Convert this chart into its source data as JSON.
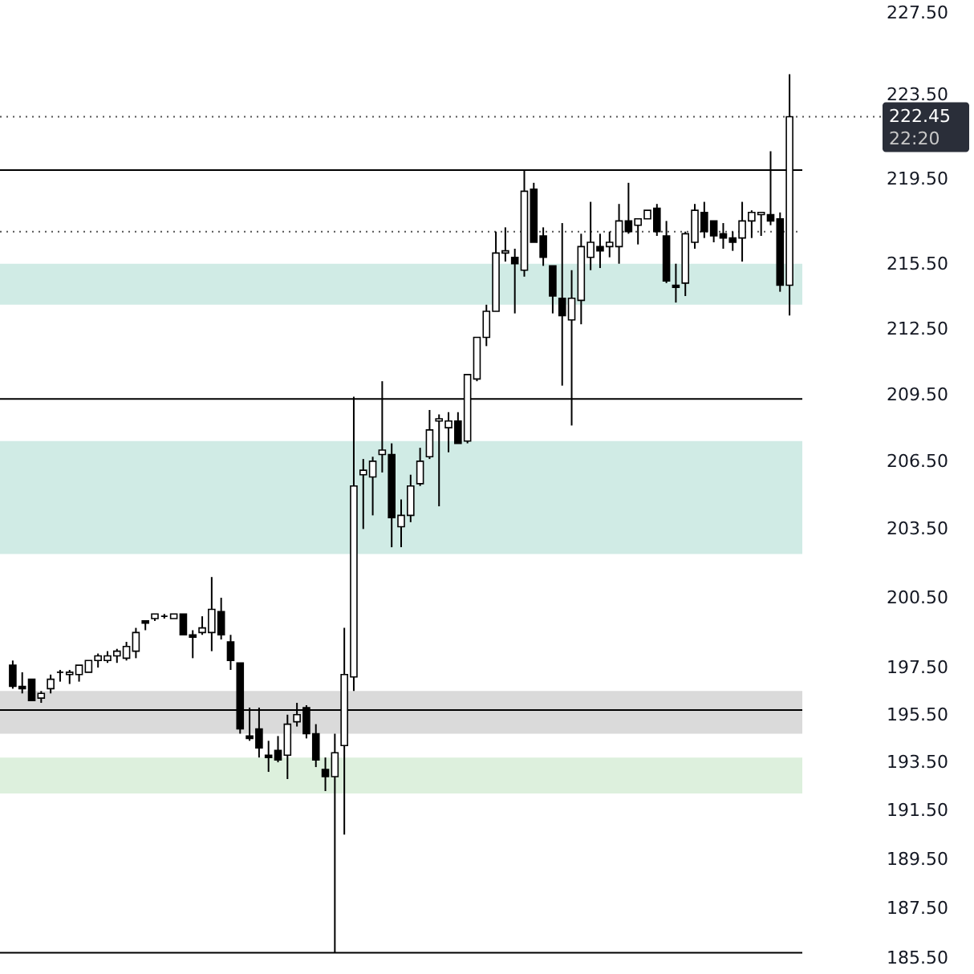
{
  "chart_data": {
    "type": "candlestick",
    "categories": [
      null,
      null,
      null,
      null,
      null,
      null,
      null,
      null,
      null,
      null,
      null,
      null,
      null,
      null,
      null,
      null,
      null,
      null,
      null,
      null,
      null,
      null,
      null,
      null,
      null,
      null,
      null,
      null,
      null,
      null,
      null,
      null,
      null,
      null,
      null,
      null,
      null,
      null,
      null,
      null,
      null,
      null,
      null,
      null,
      null,
      null,
      null,
      null,
      null,
      null,
      null,
      null,
      null,
      null,
      null,
      null,
      null,
      null,
      null,
      null,
      null,
      null,
      null,
      null,
      null,
      null,
      null,
      null,
      null,
      null,
      null,
      null,
      null,
      null,
      null,
      null,
      null,
      null,
      null,
      null,
      null,
      null,
      null
    ],
    "ohlc": [
      [
        197.6,
        197.8,
        196.6,
        196.7
      ],
      [
        196.7,
        197.3,
        196.4,
        196.6
      ],
      [
        197.0,
        197.0,
        196.1,
        196.1
      ],
      [
        196.2,
        196.5,
        196.0,
        196.4
      ],
      [
        196.6,
        197.2,
        196.4,
        197.0
      ],
      [
        197.3,
        197.4,
        196.9,
        197.3
      ],
      [
        197.2,
        197.4,
        196.8,
        197.3
      ],
      [
        197.2,
        197.6,
        196.9,
        197.6
      ],
      [
        197.3,
        197.8,
        197.3,
        197.8
      ],
      [
        197.8,
        198.1,
        197.5,
        198.0
      ],
      [
        197.8,
        198.2,
        197.7,
        198.0
      ],
      [
        198.0,
        198.3,
        197.7,
        198.2
      ],
      [
        197.9,
        198.6,
        197.8,
        198.4
      ],
      [
        198.2,
        199.2,
        197.9,
        199.0
      ],
      [
        199.5,
        199.5,
        199.1,
        199.4
      ],
      [
        199.6,
        199.8,
        199.5,
        199.8
      ],
      [
        199.7,
        199.8,
        199.6,
        199.7
      ],
      [
        199.6,
        199.8,
        199.6,
        199.8
      ],
      [
        199.8,
        199.8,
        198.9,
        198.9
      ],
      [
        198.9,
        199.1,
        197.9,
        198.8
      ],
      [
        199.0,
        199.7,
        198.9,
        199.2
      ],
      [
        199.0,
        201.4,
        198.2,
        200.0
      ],
      [
        199.9,
        200.5,
        198.7,
        198.9
      ],
      [
        198.6,
        198.9,
        197.4,
        197.8
      ],
      [
        197.7,
        197.7,
        194.7,
        194.9
      ],
      [
        194.6,
        195.8,
        194.4,
        194.5
      ],
      [
        194.9,
        195.8,
        193.7,
        194.1
      ],
      [
        193.8,
        194.4,
        193.1,
        193.7
      ],
      [
        194.0,
        194.6,
        193.5,
        193.6
      ],
      [
        193.8,
        195.5,
        192.8,
        195.1
      ],
      [
        195.2,
        196.0,
        195.0,
        195.5
      ],
      [
        195.8,
        195.9,
        194.5,
        194.7
      ],
      [
        194.7,
        195.1,
        193.3,
        193.6
      ],
      [
        193.2,
        193.7,
        192.3,
        192.9
      ],
      [
        192.9,
        194.7,
        185.7,
        193.9
      ],
      [
        194.2,
        199.2,
        190.5,
        197.2
      ],
      [
        197.1,
        209.4,
        196.5,
        205.4
      ],
      [
        205.9,
        206.6,
        203.5,
        206.1
      ],
      [
        205.8,
        206.7,
        204.1,
        206.5
      ],
      [
        206.8,
        210.1,
        206.0,
        207.0
      ],
      [
        206.8,
        207.3,
        202.7,
        204.0
      ],
      [
        203.6,
        204.8,
        202.7,
        204.1
      ],
      [
        204.1,
        205.9,
        203.8,
        205.4
      ],
      [
        205.5,
        207.1,
        205.4,
        206.5
      ],
      [
        206.7,
        208.8,
        206.6,
        207.9
      ],
      [
        208.3,
        208.6,
        204.5,
        208.4
      ],
      [
        208.0,
        208.7,
        206.9,
        208.3
      ],
      [
        208.3,
        208.7,
        207.3,
        207.3
      ],
      [
        207.4,
        210.4,
        207.3,
        210.4
      ],
      [
        210.2,
        212.1,
        210.1,
        212.1
      ],
      [
        212.1,
        213.6,
        211.7,
        213.3
      ],
      [
        213.3,
        217.0,
        213.3,
        216.0
      ],
      [
        216.0,
        217.2,
        215.6,
        216.1
      ],
      [
        215.8,
        216.2,
        213.2,
        215.5
      ],
      [
        215.2,
        219.9,
        214.9,
        218.9
      ],
      [
        219.0,
        219.3,
        216.5,
        216.5
      ],
      [
        216.8,
        217.2,
        215.4,
        215.8
      ],
      [
        215.4,
        215.4,
        213.2,
        214.0
      ],
      [
        213.9,
        217.4,
        209.9,
        213.1
      ],
      [
        212.9,
        215.2,
        208.1,
        213.9
      ],
      [
        213.8,
        216.9,
        212.7,
        216.3
      ],
      [
        215.8,
        218.4,
        215.2,
        216.5
      ],
      [
        216.3,
        216.9,
        215.3,
        216.1
      ],
      [
        216.3,
        217.0,
        215.8,
        216.5
      ],
      [
        216.3,
        218.3,
        215.5,
        217.5
      ],
      [
        217.5,
        219.3,
        216.9,
        217.0
      ],
      [
        217.3,
        217.6,
        216.4,
        217.6
      ],
      [
        217.6,
        218.0,
        217.6,
        218.0
      ],
      [
        218.1,
        218.3,
        216.8,
        217.0
      ],
      [
        216.8,
        217.5,
        214.6,
        214.7
      ],
      [
        214.5,
        215.5,
        213.7,
        214.4
      ],
      [
        214.6,
        217.0,
        214.0,
        216.9
      ],
      [
        216.5,
        218.3,
        216.2,
        218.0
      ],
      [
        217.9,
        218.4,
        216.7,
        217.0
      ],
      [
        217.5,
        217.5,
        216.5,
        216.8
      ],
      [
        216.9,
        217.4,
        216.2,
        216.7
      ],
      [
        216.7,
        217.0,
        216.1,
        216.5
      ],
      [
        216.7,
        218.4,
        215.6,
        217.5
      ],
      [
        217.5,
        218.0,
        216.7,
        217.9
      ],
      [
        217.8,
        217.9,
        216.8,
        217.9
      ],
      [
        217.8,
        220.8,
        217.3,
        217.5
      ],
      [
        217.6,
        217.9,
        214.2,
        214.5
      ],
      [
        214.5,
        224.5,
        213.1,
        222.45
      ]
    ],
    "log": true,
    "ylim": [
      185.3,
      227.5
    ],
    "yticks": [
      {
        "value": 185.5,
        "label": "185.50"
      },
      {
        "value": 187.5,
        "label": "187.50"
      },
      {
        "value": 189.5,
        "label": "189.50"
      },
      {
        "value": 191.5,
        "label": "191.50"
      },
      {
        "value": 193.5,
        "label": "193.50"
      },
      {
        "value": 195.5,
        "label": "195.50"
      },
      {
        "value": 197.5,
        "label": "197.50"
      },
      {
        "value": 200.5,
        "label": "200.50"
      },
      {
        "value": 203.5,
        "label": "203.50"
      },
      {
        "value": 206.5,
        "label": "206.50"
      },
      {
        "value": 209.5,
        "label": "209.50"
      },
      {
        "value": 212.5,
        "label": "212.50"
      },
      {
        "value": 215.5,
        "label": "215.50"
      },
      {
        "value": 219.5,
        "label": "219.50"
      },
      {
        "value": 223.5,
        "label": "223.50"
      },
      {
        "value": 227.5,
        "label": "227.50"
      }
    ],
    "tick_labels": "y",
    "grid": false,
    "ref_lines": [
      {
        "axis": "y",
        "value": 219.9,
        "color": "#000000",
        "line_style": "solid"
      },
      {
        "axis": "y",
        "value": 209.3,
        "color": "#000000",
        "line_style": "solid"
      },
      {
        "axis": "y",
        "value": 195.7,
        "color": "#000000",
        "line_style": "solid"
      },
      {
        "axis": "y",
        "value": 185.7,
        "color": "#000000",
        "line_style": "solid"
      },
      {
        "axis": "y",
        "value": 217.0,
        "color": "#555555",
        "line_style": "dotted"
      },
      {
        "axis": "y",
        "value": 222.45,
        "label": "222.45",
        "color": "#555555",
        "line_style": "dotted"
      }
    ],
    "bands": [
      {
        "axis": "y",
        "from": 213.6,
        "to": 215.5,
        "color": "#d0ebe5"
      },
      {
        "axis": "y",
        "from": 202.4,
        "to": 207.4,
        "color": "#d0ebe5"
      },
      {
        "axis": "y",
        "from": 194.7,
        "to": 196.5,
        "color": "#dadada"
      },
      {
        "axis": "y",
        "from": 192.2,
        "to": 193.7,
        "color": "#ddf0dd"
      }
    ],
    "annotations": [
      "22:20"
    ]
  }
}
